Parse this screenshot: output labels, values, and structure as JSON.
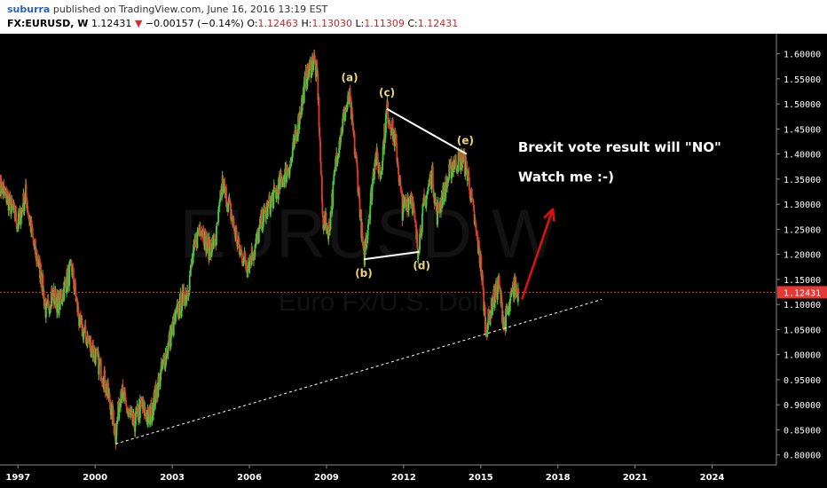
{
  "header": {
    "user": "suburra",
    "published": "published on TradingView.com, June 16, 2016 13:19 EST",
    "symbol": "FX:EURUSD, W",
    "last": "1.12431",
    "change": "−0.00157 (−0.14%)",
    "o_label": "O:",
    "o_value": "1.12463",
    "h_label": "H:",
    "h_value": "1.13030",
    "l_label": "L:",
    "l_value": "1.11309",
    "c_label": "C:",
    "c_value": "1.12431"
  },
  "colors": {
    "up": "#3fd13f",
    "down": "#e23b2e",
    "price_line": "#e53935",
    "wave": "#f0d27a",
    "arrow": "#e01010"
  },
  "chart_data": {
    "type": "candlestick",
    "symbol": "FX:EURUSD",
    "interval": "W",
    "watermark": "EURUSD W",
    "watermark_sub": "Euro Fx/U.S. Dollar",
    "last_price": "1.12431",
    "ylim": [
      0.78,
      1.64
    ],
    "xlim": [
      1996.3,
      2026.5
    ],
    "x_ticks": [
      "1997",
      "2000",
      "2003",
      "2006",
      "2009",
      "2012",
      "2015",
      "2018",
      "2021",
      "2024"
    ],
    "x_tick_values": [
      1997,
      2000,
      2003,
      2006,
      2009,
      2012,
      2015,
      2018,
      2021,
      2024
    ],
    "y_ticks": [
      "0.80000",
      "0.85000",
      "0.90000",
      "0.95000",
      "1.00000",
      "1.05000",
      "1.10000",
      "1.15000",
      "1.20000",
      "1.25000",
      "1.30000",
      "1.35000",
      "1.40000",
      "1.45000",
      "1.50000",
      "1.55000",
      "1.60000"
    ],
    "y_tick_values": [
      0.8,
      0.85,
      0.9,
      0.95,
      1.0,
      1.05,
      1.1,
      1.15,
      1.2,
      1.25,
      1.3,
      1.35,
      1.4,
      1.45,
      1.5,
      1.55,
      1.6
    ],
    "path": [
      [
        1996.3,
        1.34
      ],
      [
        1996.7,
        1.3
      ],
      [
        1997.0,
        1.26
      ],
      [
        1997.3,
        1.32
      ],
      [
        1997.6,
        1.22
      ],
      [
        1997.9,
        1.16
      ],
      [
        1998.1,
        1.08
      ],
      [
        1998.3,
        1.12
      ],
      [
        1998.6,
        1.1
      ],
      [
        1998.9,
        1.15
      ],
      [
        1999.1,
        1.17
      ],
      [
        1999.4,
        1.06
      ],
      [
        1999.7,
        1.03
      ],
      [
        2000.0,
        1.0
      ],
      [
        2000.3,
        0.96
      ],
      [
        2000.6,
        0.9
      ],
      [
        2000.8,
        0.84
      ],
      [
        2001.0,
        0.93
      ],
      [
        2001.3,
        0.88
      ],
      [
        2001.5,
        0.86
      ],
      [
        2001.8,
        0.9
      ],
      [
        2002.1,
        0.87
      ],
      [
        2002.4,
        0.93
      ],
      [
        2002.7,
        0.99
      ],
      [
        2003.0,
        1.05
      ],
      [
        2003.3,
        1.1
      ],
      [
        2003.6,
        1.13
      ],
      [
        2003.9,
        1.22
      ],
      [
        2004.1,
        1.26
      ],
      [
        2004.4,
        1.21
      ],
      [
        2004.7,
        1.23
      ],
      [
        2004.95,
        1.34
      ],
      [
        2005.2,
        1.3
      ],
      [
        2005.6,
        1.21
      ],
      [
        2005.9,
        1.18
      ],
      [
        2006.2,
        1.21
      ],
      [
        2006.5,
        1.27
      ],
      [
        2006.9,
        1.31
      ],
      [
        2007.2,
        1.34
      ],
      [
        2007.6,
        1.38
      ],
      [
        2007.9,
        1.46
      ],
      [
        2008.2,
        1.55
      ],
      [
        2008.5,
        1.59
      ],
      [
        2008.65,
        1.55
      ],
      [
        2008.85,
        1.27
      ],
      [
        2009.1,
        1.25
      ],
      [
        2009.4,
        1.4
      ],
      [
        2009.7,
        1.48
      ],
      [
        2009.9,
        1.51
      ],
      [
        2010.2,
        1.36
      ],
      [
        2010.45,
        1.19
      ],
      [
        2010.7,
        1.3
      ],
      [
        2010.9,
        1.4
      ],
      [
        2011.1,
        1.36
      ],
      [
        2011.35,
        1.49
      ],
      [
        2011.7,
        1.42
      ],
      [
        2011.95,
        1.29
      ],
      [
        2012.3,
        1.32
      ],
      [
        2012.55,
        1.21
      ],
      [
        2012.8,
        1.3
      ],
      [
        2013.1,
        1.36
      ],
      [
        2013.3,
        1.28
      ],
      [
        2013.6,
        1.33
      ],
      [
        2013.9,
        1.38
      ],
      [
        2014.3,
        1.39
      ],
      [
        2014.5,
        1.36
      ],
      [
        2014.8,
        1.25
      ],
      [
        2015.0,
        1.18
      ],
      [
        2015.2,
        1.05
      ],
      [
        2015.5,
        1.11
      ],
      [
        2015.7,
        1.14
      ],
      [
        2015.9,
        1.06
      ],
      [
        2016.1,
        1.09
      ],
      [
        2016.3,
        1.14
      ],
      [
        2016.46,
        1.12431
      ]
    ],
    "annotations": {
      "wave_labels": [
        {
          "text": "(a)",
          "x": 2009.9,
          "y": 1.545
        },
        {
          "text": "(b)",
          "x": 2010.45,
          "y": 1.155
        },
        {
          "text": "(c)",
          "x": 2011.35,
          "y": 1.515
        },
        {
          "text": "(d)",
          "x": 2012.7,
          "y": 1.17
        },
        {
          "text": "(e)",
          "x": 2014.4,
          "y": 1.42
        }
      ],
      "trend_lines": [
        {
          "from": [
            2011.35,
            1.49
          ],
          "to": [
            2014.45,
            1.4
          ],
          "style": "solid"
        },
        {
          "from": [
            2010.45,
            1.19
          ],
          "to": [
            2012.6,
            1.205
          ],
          "style": "solid"
        },
        {
          "from": [
            2000.8,
            0.822
          ],
          "to": [
            2019.7,
            1.11
          ],
          "style": "dashed"
        }
      ],
      "texts": [
        {
          "text": "Brexit vote result will \"NO\"",
          "x": 2016.45,
          "y": 1.405
        },
        {
          "text": "Watch me :-)",
          "x": 2016.45,
          "y": 1.345
        }
      ],
      "arrow": {
        "from": [
          2016.6,
          1.11
        ],
        "to": [
          2017.8,
          1.29
        ]
      }
    }
  }
}
